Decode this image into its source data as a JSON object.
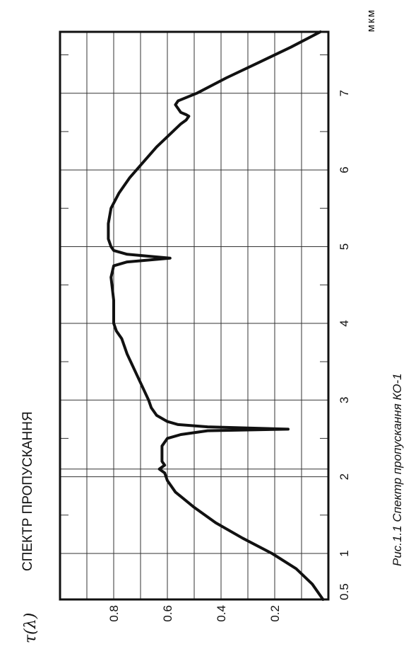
{
  "chart_data": {
    "type": "line",
    "title": "СПЕКТР ПРОПУСКАННЯ",
    "caption": "Рис.1.1 Спектр пропускання КО-1",
    "ylabel": "τ(λ)",
    "xunit": "мкм",
    "xlim": [
      0.4,
      7.8
    ],
    "ylim": [
      0,
      1.0
    ],
    "xticks": [
      {
        "v": 0.5,
        "label": "0.5"
      },
      {
        "v": 1,
        "label": "1"
      },
      {
        "v": 2,
        "label": "2"
      },
      {
        "v": 3,
        "label": "3"
      },
      {
        "v": 4,
        "label": "4"
      },
      {
        "v": 5,
        "label": "5"
      },
      {
        "v": 6,
        "label": "6"
      },
      {
        "v": 7,
        "label": "7"
      }
    ],
    "yticks": [
      {
        "v": 0.2,
        "label": "0.2"
      },
      {
        "v": 0.4,
        "label": "0.4"
      },
      {
        "v": 0.6,
        "label": "0.6"
      },
      {
        "v": 0.8,
        "label": "0.8"
      }
    ],
    "grid": true,
    "series": [
      {
        "x": [
          0.4,
          0.6,
          0.8,
          1.0,
          1.2,
          1.4,
          1.6,
          1.8,
          1.95,
          2.05,
          2.1,
          2.15,
          2.2,
          2.3,
          2.4,
          2.5,
          2.55,
          2.6,
          2.62,
          2.65,
          2.68,
          2.72,
          2.8,
          2.9,
          3.0,
          3.3,
          3.6,
          3.8,
          3.9,
          4.0,
          4.3,
          4.6,
          4.75,
          4.8,
          4.85,
          4.9,
          4.95,
          5.0,
          5.1,
          5.3,
          5.5,
          5.7,
          5.9,
          6.1,
          6.3,
          6.5,
          6.6,
          6.65,
          6.7,
          6.72,
          6.75,
          6.8,
          6.85,
          6.9,
          7.0,
          7.2,
          7.4,
          7.6,
          7.8
        ],
        "y": [
          0.02,
          0.06,
          0.12,
          0.21,
          0.32,
          0.42,
          0.5,
          0.57,
          0.6,
          0.61,
          0.63,
          0.61,
          0.62,
          0.62,
          0.62,
          0.6,
          0.55,
          0.45,
          0.15,
          0.45,
          0.56,
          0.6,
          0.64,
          0.66,
          0.67,
          0.71,
          0.75,
          0.77,
          0.79,
          0.8,
          0.8,
          0.81,
          0.8,
          0.75,
          0.59,
          0.75,
          0.8,
          0.81,
          0.82,
          0.82,
          0.81,
          0.78,
          0.74,
          0.69,
          0.64,
          0.58,
          0.55,
          0.53,
          0.52,
          0.53,
          0.55,
          0.56,
          0.57,
          0.56,
          0.49,
          0.38,
          0.26,
          0.14,
          0.03
        ]
      }
    ]
  }
}
